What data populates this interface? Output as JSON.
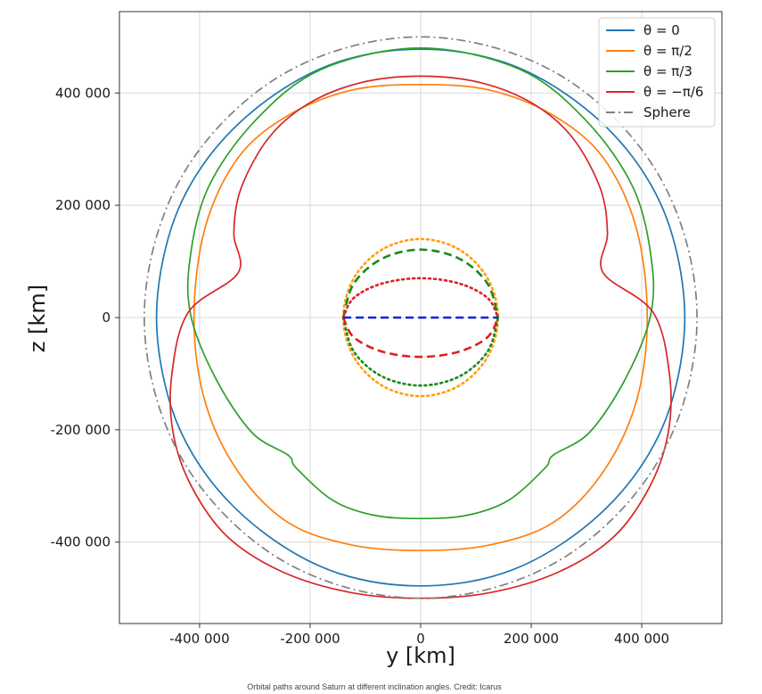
{
  "caption": "Orbital paths around Saturn at different inclination angles. Credit: Icarus",
  "chart_data": {
    "type": "line",
    "xlabel": "y [km]",
    "ylabel": "z [km]",
    "xlim": [
      -545000,
      545000
    ],
    "ylim": [
      -545000,
      545000
    ],
    "grid": true,
    "legend_position": "top-right",
    "xticks": [
      {
        "value": -400000,
        "label": "-400 000"
      },
      {
        "value": -200000,
        "label": "-200 000"
      },
      {
        "value": 0,
        "label": "0"
      },
      {
        "value": 200000,
        "label": "200 000"
      },
      {
        "value": 400000,
        "label": "400 000"
      }
    ],
    "yticks": [
      {
        "value": 400000,
        "label": "400 000"
      },
      {
        "value": 200000,
        "label": "200 000"
      },
      {
        "value": 0,
        "label": "0"
      },
      {
        "value": -200000,
        "label": "-200 000"
      },
      {
        "value": -400000,
        "label": "-400 000"
      }
    ],
    "series": [
      {
        "name": "θ = 0",
        "color": "#1f77b4",
        "style": "solid",
        "points": [
          [
            -478000,
            0
          ],
          [
            -451000,
            -160000
          ],
          [
            -385000,
            -284000
          ],
          [
            -280000,
            -386000
          ],
          [
            -150000,
            -455000
          ],
          [
            0,
            -478000
          ],
          [
            150000,
            -455000
          ],
          [
            280000,
            -386000
          ],
          [
            385000,
            -284000
          ],
          [
            451000,
            -160000
          ],
          [
            478000,
            0
          ],
          [
            451000,
            160000
          ],
          [
            385000,
            284000
          ],
          [
            280000,
            386000
          ],
          [
            150000,
            455000
          ],
          [
            0,
            478000
          ],
          [
            -150000,
            455000
          ],
          [
            -280000,
            386000
          ],
          [
            -385000,
            284000
          ],
          [
            -451000,
            160000
          ],
          [
            -478000,
            0
          ]
        ]
      },
      {
        "name": "θ = π/2",
        "color": "#ff7f0e",
        "style": "solid",
        "points": [
          [
            -410000,
            0
          ],
          [
            -390000,
            -150000
          ],
          [
            -330000,
            -275000
          ],
          [
            -240000,
            -365000
          ],
          [
            -125000,
            -405000
          ],
          [
            0,
            -415000
          ],
          [
            125000,
            -405000
          ],
          [
            240000,
            -365000
          ],
          [
            330000,
            -275000
          ],
          [
            390000,
            -150000
          ],
          [
            410000,
            0
          ],
          [
            390000,
            160000
          ],
          [
            330000,
            285000
          ],
          [
            240000,
            360000
          ],
          [
            125000,
            405000
          ],
          [
            0,
            415000
          ],
          [
            -125000,
            405000
          ],
          [
            -240000,
            360000
          ],
          [
            -330000,
            285000
          ],
          [
            -390000,
            160000
          ],
          [
            -410000,
            0
          ]
        ]
      },
      {
        "name": "θ = π/3",
        "color": "#2ca02c",
        "style": "solid",
        "points": [
          [
            -415000,
            0
          ],
          [
            -370000,
            -110000
          ],
          [
            -305000,
            -205000
          ],
          [
            -240000,
            -245000
          ],
          [
            -225000,
            -268000
          ],
          [
            -160000,
            -325000
          ],
          [
            -85000,
            -352000
          ],
          [
            0,
            -358000
          ],
          [
            85000,
            -352000
          ],
          [
            160000,
            -325000
          ],
          [
            225000,
            -268000
          ],
          [
            240000,
            -245000
          ],
          [
            305000,
            -205000
          ],
          [
            370000,
            -110000
          ],
          [
            415000,
            0
          ],
          [
            418000,
            100000
          ],
          [
            385000,
            230000
          ],
          [
            300000,
            350000
          ],
          [
            180000,
            442000
          ],
          [
            0,
            480000
          ],
          [
            -180000,
            442000
          ],
          [
            -300000,
            350000
          ],
          [
            -385000,
            230000
          ],
          [
            -418000,
            100000
          ],
          [
            -415000,
            0
          ]
        ]
      },
      {
        "name": "θ = −π/6",
        "color": "#d62728",
        "style": "solid",
        "points": [
          [
            -330000,
            80000
          ],
          [
            -420000,
            10000
          ],
          [
            -450000,
            -100000
          ],
          [
            -448000,
            -205000
          ],
          [
            -415000,
            -300000
          ],
          [
            -350000,
            -390000
          ],
          [
            -250000,
            -453000
          ],
          [
            -125000,
            -490000
          ],
          [
            0,
            -500000
          ],
          [
            125000,
            -490000
          ],
          [
            250000,
            -453000
          ],
          [
            350000,
            -390000
          ],
          [
            415000,
            -300000
          ],
          [
            448000,
            -205000
          ],
          [
            450000,
            -100000
          ],
          [
            420000,
            10000
          ],
          [
            330000,
            80000
          ],
          [
            338000,
            150000
          ],
          [
            325000,
            230000
          ],
          [
            275000,
            320000
          ],
          [
            205000,
            380000
          ],
          [
            110000,
            418000
          ],
          [
            0,
            430000
          ],
          [
            -110000,
            418000
          ],
          [
            -205000,
            380000
          ],
          [
            -275000,
            320000
          ],
          [
            -325000,
            230000
          ],
          [
            -338000,
            150000
          ],
          [
            -330000,
            80000
          ]
        ]
      },
      {
        "name": "Sphere",
        "color": "#808080",
        "style": "dashdot",
        "points": [
          [
            -500000,
            0
          ],
          [
            -433000,
            -250000
          ],
          [
            -250000,
            -433000
          ],
          [
            0,
            -500000
          ],
          [
            250000,
            -433000
          ],
          [
            433000,
            -250000
          ],
          [
            500000,
            0
          ],
          [
            433000,
            250000
          ],
          [
            250000,
            433000
          ],
          [
            0,
            500000
          ],
          [
            -250000,
            433000
          ],
          [
            -433000,
            250000
          ],
          [
            -500000,
            0
          ]
        ]
      }
    ],
    "inner_curves": [
      {
        "color": "#ff9f0e",
        "style": "dotted",
        "points": [
          [
            -140000,
            0
          ],
          [
            -121000,
            70000
          ],
          [
            -70000,
            121000
          ],
          [
            0,
            140000
          ],
          [
            70000,
            121000
          ],
          [
            121000,
            70000
          ],
          [
            140000,
            0
          ],
          [
            121000,
            -70000
          ],
          [
            70000,
            -121000
          ],
          [
            0,
            -140000
          ],
          [
            -70000,
            -121000
          ],
          [
            -121000,
            -70000
          ],
          [
            -140000,
            0
          ]
        ]
      },
      {
        "color": "#1a8a1a",
        "style": "dashed",
        "points": [
          [
            -140000,
            0
          ],
          [
            -121000,
            60600
          ],
          [
            -70000,
            104800
          ],
          [
            0,
            121000
          ],
          [
            70000,
            104800
          ],
          [
            121000,
            60600
          ],
          [
            140000,
            0
          ]
        ]
      },
      {
        "color": "#1a8a1a",
        "style": "dotted",
        "points": [
          [
            -140000,
            0
          ],
          [
            -121000,
            -60600
          ],
          [
            -70000,
            -104800
          ],
          [
            0,
            -121000
          ],
          [
            70000,
            -104800
          ],
          [
            121000,
            -60600
          ],
          [
            140000,
            0
          ]
        ]
      },
      {
        "color": "#e02020",
        "style": "dotted",
        "points": [
          [
            -140000,
            0
          ],
          [
            -121000,
            35000
          ],
          [
            -70000,
            60600
          ],
          [
            0,
            70000
          ],
          [
            70000,
            60600
          ],
          [
            121000,
            35000
          ],
          [
            140000,
            0
          ]
        ]
      },
      {
        "color": "#e02020",
        "style": "dashed",
        "points": [
          [
            -140000,
            0
          ],
          [
            -121000,
            -35000
          ],
          [
            -70000,
            -60600
          ],
          [
            0,
            -70000
          ],
          [
            70000,
            -60600
          ],
          [
            121000,
            -35000
          ],
          [
            140000,
            0
          ]
        ]
      },
      {
        "color": "#1020e0",
        "style": "dashed",
        "points": [
          [
            -140000,
            0
          ],
          [
            140000,
            0
          ]
        ]
      }
    ]
  }
}
